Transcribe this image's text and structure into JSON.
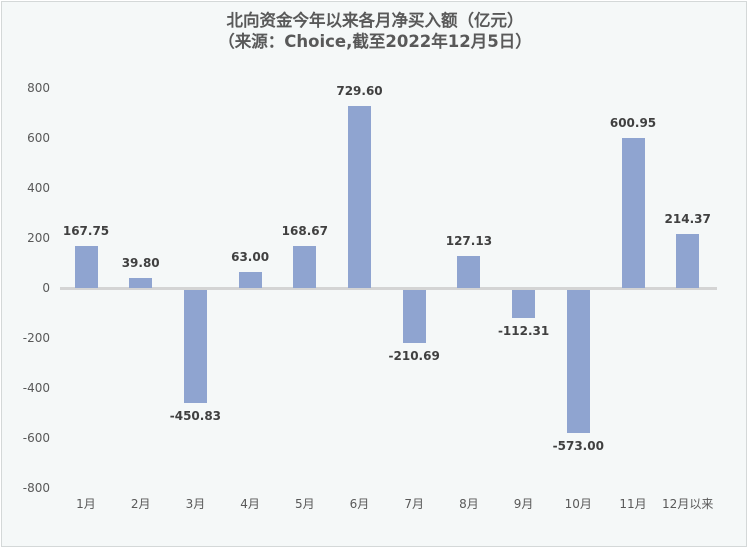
{
  "chart_data": {
    "type": "bar",
    "title": "北向资金今年以来各月净买入额（亿元）",
    "subtitle": "（来源：Choice,截至2022年12月5日）",
    "xlabel": "",
    "ylabel": "",
    "categories": [
      "1月",
      "2月",
      "3月",
      "4月",
      "5月",
      "6月",
      "7月",
      "8月",
      "9月",
      "10月",
      "11月",
      "12月以来"
    ],
    "values": [
      167.75,
      39.8,
      -450.83,
      63.0,
      168.67,
      729.6,
      -210.69,
      127.13,
      -112.31,
      -573.0,
      600.95,
      214.37
    ],
    "value_labels": [
      "167.75",
      "39.80",
      "-450.83",
      "63.00",
      "168.67",
      "729.60",
      "-210.69",
      "127.13",
      "-112.31",
      "-573.00",
      "600.95",
      "214.37"
    ],
    "ylim": [
      -800,
      800
    ],
    "yticks": [
      "800",
      "600",
      "400",
      "200",
      "0",
      "-200",
      "-400",
      "-600",
      "-800"
    ],
    "ytick_values": [
      800,
      600,
      400,
      200,
      0,
      -200,
      -400,
      -600,
      -800
    ],
    "grid": false,
    "legend": "none",
    "colors": {
      "bar": "#8fa4d0",
      "zero_line": "#d4d4d4",
      "background": "#f5f8f8",
      "label": "#404040"
    }
  }
}
